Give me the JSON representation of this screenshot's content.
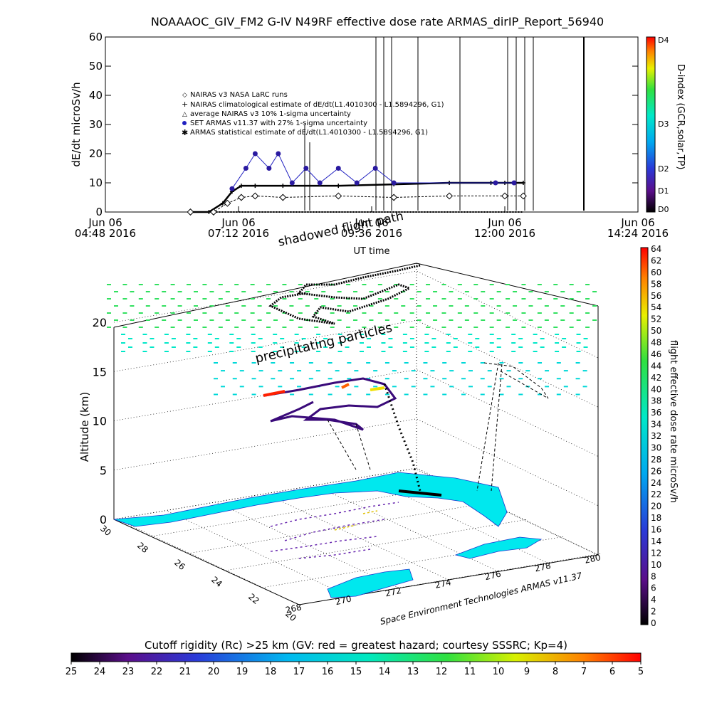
{
  "title": "NOAAAOC_GIV_FM2 G-IV    N49RF   effective dose rate ARMAS_dirIP_Report_56940",
  "chart_data": [
    {
      "type": "line",
      "panel": "dose-rate-time-series",
      "ylabel": "dE/dt microSv/h",
      "xlabel": "UT time",
      "x_ticks": [
        {
          "l1": "Jun 06",
          "l2": "04:48 2016"
        },
        {
          "l1": "Jun 06",
          "l2": "07:12 2016"
        },
        {
          "l1": "Jun 06",
          "l2": "09:36 2016"
        },
        {
          "l1": "Jun 06",
          "l2": "12:00 2016"
        },
        {
          "l1": "Jun 06",
          "l2": "14:24 2016"
        }
      ],
      "xlim": [
        "2016-06-06 04:48",
        "2016-06-06 14:24"
      ],
      "ylim": [
        0,
        60
      ],
      "y_ticks": [
        "0",
        "10",
        "20",
        "30",
        "40",
        "50",
        "60"
      ],
      "legend": [
        "NAIRAS v3 NASA LaRC runs",
        "NAIRAS climatological estimate of dE/dt(L1.4010300 - L1.5894296, G1)",
        "average NAIRAS v3 10% 1-sigma uncertainty",
        "SET ARMAS v11.37 with 27% 1-sigma uncertainty",
        "ARMAS statistical estimate of dE/dt(L1.4010300 - L1.5894296, G1)"
      ],
      "overlay_label": "shadowed flight path",
      "series": [
        {
          "name": "NAIRAS climatological estimate of dE/dt(L1.4010300 - L1.5894296, G1)",
          "x": [
            "06:20",
            "06:40",
            "06:55",
            "07:05",
            "07:15",
            "07:30",
            "08:00",
            "09:00",
            "10:00",
            "11:00",
            "11:45",
            "12:00",
            "12:20"
          ],
          "values": [
            0,
            0,
            3,
            7,
            9,
            9,
            9,
            9,
            9.5,
            10,
            10,
            10,
            10
          ]
        },
        {
          "name": "NAIRAS v3 NASA LaRC runs",
          "x": [
            "06:20",
            "06:45",
            "07:00",
            "07:15",
            "07:30",
            "08:00",
            "09:00",
            "10:00",
            "11:00",
            "12:00",
            "12:20"
          ],
          "values": [
            0,
            0,
            3,
            5,
            5.5,
            5,
            5.5,
            5,
            5.5,
            5.5,
            5.5
          ]
        },
        {
          "name": "SET ARMAS v11.37 with 27% 1-sigma uncertainty",
          "x": [
            "07:05",
            "07:20",
            "07:30",
            "07:45",
            "07:55",
            "08:10",
            "08:25",
            "08:40",
            "09:00",
            "09:20",
            "09:40",
            "10:00",
            "11:50",
            "12:10"
          ],
          "values": [
            8,
            15,
            20,
            15,
            20,
            10,
            15,
            10,
            15,
            10,
            15,
            10,
            10,
            10
          ]
        }
      ],
      "colorbar": {
        "label": "D-index (GCR,solar,TP)",
        "ticks": [
          "D0",
          "D1",
          "D2",
          "D3",
          "D4"
        ]
      }
    },
    {
      "type": "scatter",
      "panel": "3d-flight-track",
      "zlabel": "Altitude (km)",
      "z_ticks": [
        "0",
        "5",
        "10",
        "15",
        "20"
      ],
      "zlim": [
        0,
        20
      ],
      "lat_ticks": [
        "20",
        "22",
        "24",
        "26",
        "28",
        "30"
      ],
      "lon_ticks": [
        "268",
        "270",
        "272",
        "274",
        "276",
        "278",
        "280"
      ],
      "annotations": [
        "precipitating particles",
        "Space Environment Technologies ARMAS v11.37"
      ],
      "colorbar": {
        "label": "flight effective dose rate microSv/h",
        "ticks": [
          "0",
          "2",
          "4",
          "6",
          "8",
          "10",
          "12",
          "14",
          "16",
          "18",
          "20",
          "22",
          "24",
          "26",
          "28",
          "30",
          "32",
          "34",
          "36",
          "38",
          "40",
          "42",
          "44",
          "46",
          "48",
          "50",
          "52",
          "54",
          "56",
          "58",
          "60",
          "62",
          "64"
        ]
      },
      "rigidity_bar": {
        "label": "Cutoff rigidity (Rc) >25 km (GV: red = greatest hazard; courtesy SSSRC; Kp=4)",
        "ticks": [
          "25",
          "24",
          "23",
          "22",
          "21",
          "20",
          "19",
          "18",
          "17",
          "16",
          "15",
          "14",
          "13",
          "12",
          "11",
          "10",
          "9",
          "8",
          "7",
          "6",
          "5"
        ]
      }
    }
  ]
}
